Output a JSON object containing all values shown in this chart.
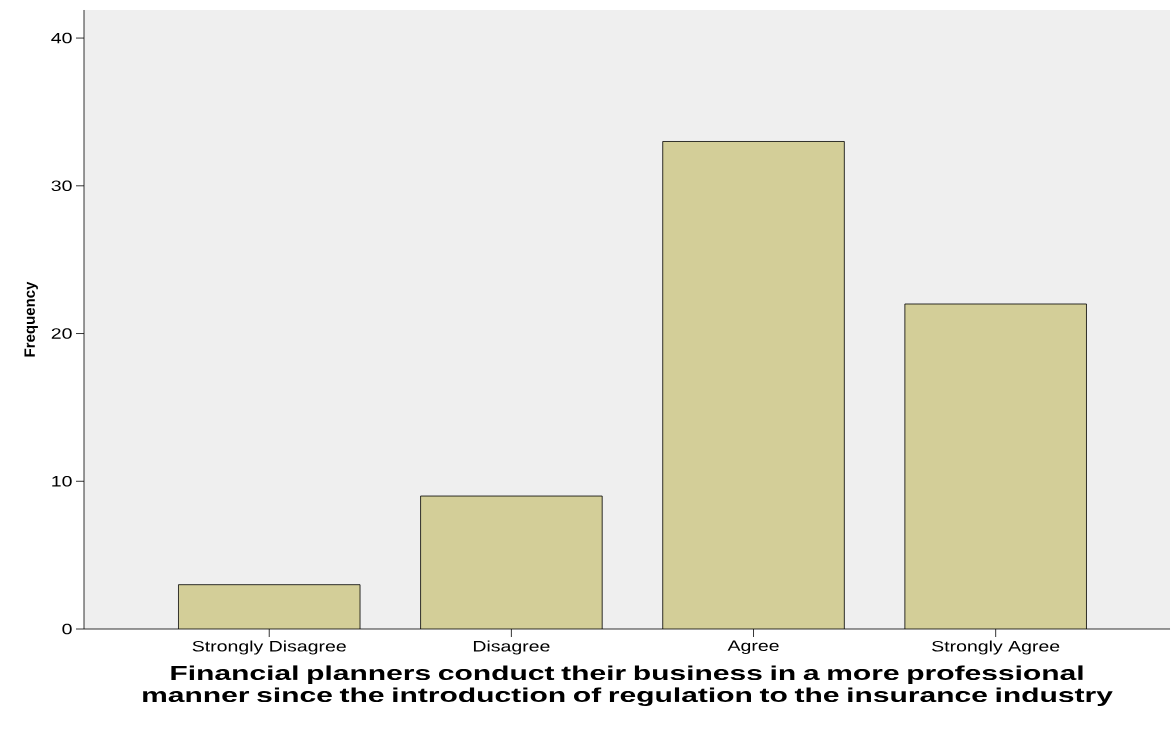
{
  "chart_data": {
    "type": "bar",
    "xlabel": "Financial planners conduct their business in a more professional manner since the introduction of regulation to the insurance industry",
    "ylabel": "Frequency",
    "categories": [
      "Strongly Disagree",
      "Disagree",
      "Agree",
      "Strongly Agree"
    ],
    "values": [
      3,
      9,
      33,
      22
    ],
    "color": "#d3ce98",
    "ylim": [
      0,
      41.9
    ],
    "yticks": [
      0,
      10,
      20,
      30,
      40
    ],
    "grid": false
  }
}
